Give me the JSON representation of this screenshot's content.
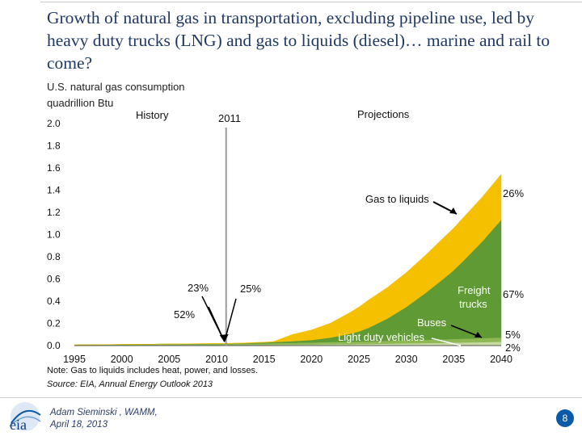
{
  "slide": {
    "title": "Growth of natural gas in transportation, excluding pipeline use, led by heavy duty trucks (LNG) and gas to liquids (diesel)… marine and rail to come?",
    "page_number": "8",
    "author_line1": "Adam Sieminski , WAMM,",
    "author_line2": "April 18, 2013",
    "logo_text": "eia"
  },
  "chart_data": {
    "type": "area",
    "ylabel_line1": "U.S. natural gas consumption",
    "ylabel_line2": "quadrillion Btu",
    "x_ticks": [
      "1995",
      "2000",
      "2005",
      "2010",
      "2015",
      "2020",
      "2025",
      "2030",
      "2035",
      "2040"
    ],
    "y_ticks": [
      "0.0",
      "0.2",
      "0.4",
      "0.6",
      "0.8",
      "1.0",
      "1.2",
      "1.4",
      "1.6",
      "1.8",
      "2.0"
    ],
    "xlim": [
      1995,
      2040
    ],
    "ylim": [
      0,
      2.0
    ],
    "divider_year": 2011,
    "history_label": "History",
    "divider_label": "2011",
    "projections_label": "Projections",
    "x": [
      1995,
      2000,
      2005,
      2010,
      2011,
      2012,
      2013,
      2014,
      2015,
      2016,
      2018,
      2020,
      2022,
      2024,
      2025,
      2026,
      2028,
      2030,
      2032,
      2034,
      2035,
      2036,
      2038,
      2040
    ],
    "series": [
      {
        "name": "Light duty vehicles",
        "color": "#c6d9a0",
        "values": [
          0.002,
          0.004,
          0.006,
          0.006,
          0.006,
          0.006,
          0.006,
          0.007,
          0.007,
          0.008,
          0.009,
          0.01,
          0.012,
          0.013,
          0.014,
          0.015,
          0.017,
          0.02,
          0.022,
          0.025,
          0.026,
          0.028,
          0.031,
          0.035
        ]
      },
      {
        "name": "Buses",
        "color": "#8db853",
        "values": [
          0.004,
          0.006,
          0.008,
          0.009,
          0.009,
          0.01,
          0.011,
          0.012,
          0.013,
          0.014,
          0.016,
          0.018,
          0.02,
          0.022,
          0.023,
          0.024,
          0.026,
          0.028,
          0.03,
          0.032,
          0.033,
          0.034,
          0.036,
          0.038
        ]
      },
      {
        "name": "Freight trucks",
        "color": "#5f9a35",
        "values": [
          0,
          0,
          0,
          0.002,
          0.002,
          0.003,
          0.004,
          0.006,
          0.008,
          0.01,
          0.015,
          0.022,
          0.04,
          0.07,
          0.09,
          0.12,
          0.2,
          0.3,
          0.42,
          0.55,
          0.62,
          0.7,
          0.87,
          1.06
        ]
      },
      {
        "name": "Gas to liquids",
        "color": "#f5c000",
        "values": [
          0,
          0,
          0,
          0.003,
          0.003,
          0.003,
          0.003,
          0.003,
          0.003,
          0.004,
          0.06,
          0.09,
          0.13,
          0.19,
          0.22,
          0.25,
          0.28,
          0.31,
          0.34,
          0.37,
          0.38,
          0.39,
          0.4,
          0.41
        ]
      }
    ],
    "labels": {
      "history_23": "23%",
      "history_25": "25%",
      "history_52": "52%",
      "gas_to_liquids": "Gas to liquids",
      "pct_26": "26%",
      "freight_line1": "Freight",
      "freight_line2": "trucks",
      "pct_67": "67%",
      "buses": "Buses",
      "light_duty": "Light duty vehicles",
      "pct_5": "5%",
      "pct_2": "2%"
    },
    "note": "Note: Gas to liquids includes heat, power, and losses.",
    "source": "Source: EIA, Annual Energy Outlook 2013"
  }
}
